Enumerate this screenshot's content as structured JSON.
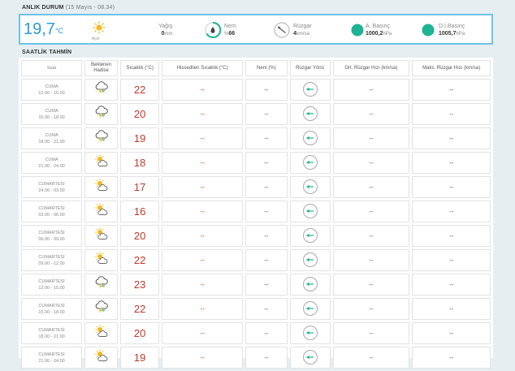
{
  "anlik": {
    "title": "ANLIK DURUM",
    "date": "(15 Mayıs - 08.34)",
    "temp": "19,7",
    "temp_unit": "°C",
    "condition": "Açık",
    "yagis_label": "Yağış",
    "yagis_value": "0",
    "yagis_unit": "mm",
    "nem_label": "Nem",
    "nem_unit": "%",
    "nem_value": "66",
    "ruzgar_label": "Rüzgar",
    "ruzgar_value": "4",
    "ruzgar_unit": "km/sa",
    "abasinc_label": "A. Basınç",
    "abasinc_value": "1000,2",
    "abasinc_unit": "hPa",
    "dibasinc_label": "D.İ.Basınç",
    "dibasinc_value": "1005,7",
    "dibasinc_unit": "hPa",
    "accent": "#2b9ad6",
    "teal": "#1fb394"
  },
  "saatlik": {
    "title": "SAATLİK TAHMİN",
    "headers": {
      "saat": "Saat",
      "hadise1": "Beklenen",
      "hadise2": "Hadise",
      "sicaklik": "Sıcaklık (°C)",
      "hissedilen": "Hissedilen Sıcaklık (°C)",
      "nem": "Nem (%)",
      "yon": "Rüzgar Yönü",
      "ort": "Ort. Rüzgar Hızı (km/sa)",
      "maks": "Maks. Rüzgar Hızı (km/sa)"
    },
    "rows": [
      {
        "day": "CUMA",
        "time": "12.00 - 15.00",
        "icon": "thunderstorm-cloud-icon",
        "temp": "22",
        "hiss": "--",
        "nem": "--",
        "ort": "--",
        "maks": "--"
      },
      {
        "day": "CUMA",
        "time": "15.00 - 18.00",
        "icon": "thunderstorm-cloud-icon",
        "temp": "20",
        "hiss": "--",
        "nem": "--",
        "ort": "--",
        "maks": "--"
      },
      {
        "day": "CUMA",
        "time": "18.00 - 21.00",
        "icon": "thunderstorm-cloud-icon",
        "temp": "19",
        "hiss": "--",
        "nem": "--",
        "ort": "--",
        "maks": "--"
      },
      {
        "day": "CUMA",
        "time": "21.00 - 24.00",
        "icon": "partly-cloudy-icon",
        "temp": "18",
        "hiss": "--",
        "nem": "--",
        "ort": "--",
        "maks": "--"
      },
      {
        "day": "CUMARTESİ",
        "time": "24.00 - 03.00",
        "icon": "partly-cloudy-icon",
        "temp": "17",
        "hiss": "--",
        "nem": "--",
        "ort": "--",
        "maks": "--"
      },
      {
        "day": "CUMARTESİ",
        "time": "03.00 - 06.00",
        "icon": "partly-cloudy-icon",
        "temp": "16",
        "hiss": "--",
        "nem": "--",
        "ort": "--",
        "maks": "--"
      },
      {
        "day": "CUMARTESİ",
        "time": "06.00 - 09.00",
        "icon": "partly-cloudy-icon",
        "temp": "20",
        "hiss": "--",
        "nem": "--",
        "ort": "--",
        "maks": "--"
      },
      {
        "day": "CUMARTESİ",
        "time": "09.00 - 12.00",
        "icon": "partly-cloudy-icon",
        "temp": "22",
        "hiss": "--",
        "nem": "--",
        "ort": "--",
        "maks": "--"
      },
      {
        "day": "CUMARTESİ",
        "time": "12.00 - 15.00",
        "icon": "thunderstorm-cloud-icon",
        "temp": "23",
        "hiss": "--",
        "nem": "--",
        "ort": "--",
        "maks": "--"
      },
      {
        "day": "CUMARTESİ",
        "time": "15.00 - 18.00",
        "icon": "thunderstorm-cloud-icon",
        "temp": "22",
        "hiss": "--",
        "nem": "--",
        "ort": "--",
        "maks": "--"
      },
      {
        "day": "CUMARTESİ",
        "time": "18.00 - 21.00",
        "icon": "partly-cloudy-icon",
        "temp": "20",
        "hiss": "--",
        "nem": "--",
        "ort": "--",
        "maks": "--"
      },
      {
        "day": "CUMARTESİ",
        "time": "21.00 - 24.00",
        "icon": "partly-cloudy-icon",
        "temp": "19",
        "hiss": "--",
        "nem": "--",
        "ort": "--",
        "maks": "--"
      }
    ]
  }
}
